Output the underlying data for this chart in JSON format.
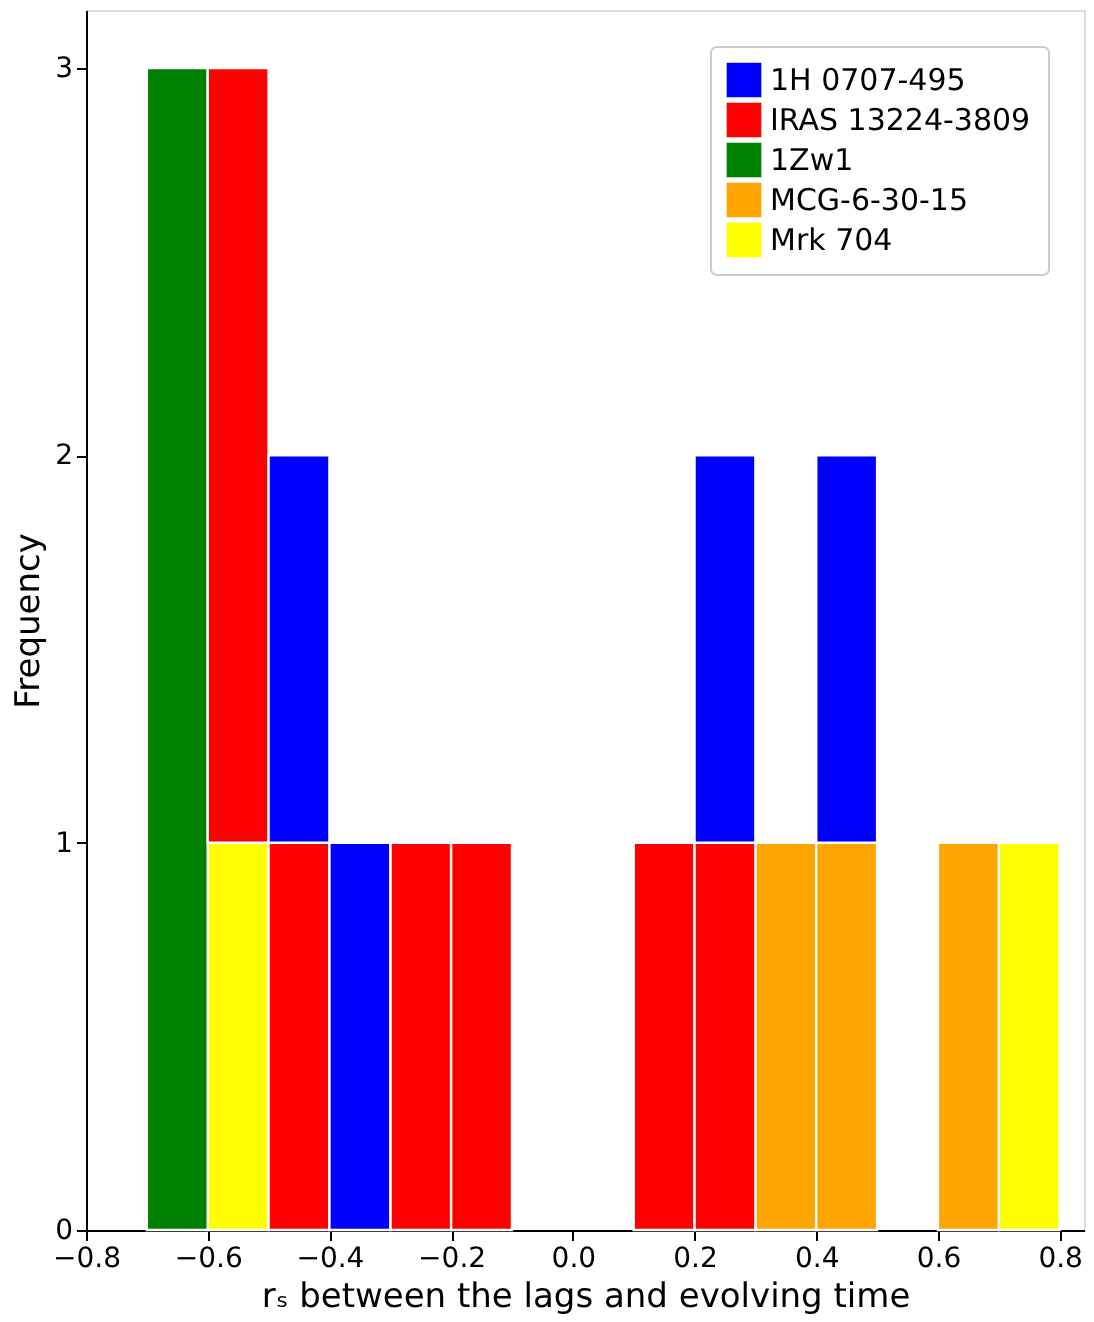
{
  "chart_data": {
    "type": "bar",
    "xlabel": "rₛ between the lags and evolving time",
    "ylabel": "Frequency",
    "x": [
      -0.65,
      -0.55,
      -0.45,
      -0.35,
      -0.25,
      -0.15,
      -0.05,
      0.05,
      0.15,
      0.25,
      0.35,
      0.45,
      0.55,
      0.65,
      0.75
    ],
    "stacked": true,
    "series": [
      {
        "name": "Mrk 704",
        "color": "#ffff00",
        "values": [
          0,
          1,
          0,
          0,
          0,
          0,
          0,
          0,
          0,
          0,
          0,
          0,
          0,
          0,
          1
        ]
      },
      {
        "name": "MCG-6-30-15",
        "color": "#ffa500",
        "values": [
          0,
          0,
          0,
          0,
          0,
          0,
          0,
          0,
          0,
          0,
          1,
          1,
          0,
          1,
          0
        ]
      },
      {
        "name": "1Zw1",
        "color": "#008000",
        "values": [
          3,
          0,
          0,
          0,
          0,
          0,
          0,
          0,
          0,
          0,
          0,
          0,
          0,
          0,
          0
        ]
      },
      {
        "name": "IRAS 13224-3809",
        "color": "#ff0000",
        "values": [
          0,
          2,
          1,
          0,
          1,
          1,
          0,
          0,
          1,
          1,
          0,
          0,
          0,
          0,
          0
        ]
      },
      {
        "name": "1H 0707-495",
        "color": "#0000ff",
        "values": [
          0,
          0,
          1,
          1,
          0,
          0,
          0,
          0,
          0,
          1,
          0,
          1,
          0,
          0,
          0
        ]
      }
    ],
    "xlim": [
      -0.8,
      0.84
    ],
    "xticks": [
      -0.8,
      -0.6,
      -0.4,
      -0.2,
      {
        "value": 0,
        "label": "0.0"
      },
      0.2,
      0.4,
      0.6,
      0.8
    ],
    "ylim": [
      0,
      3.15
    ],
    "yticks": [
      0,
      1,
      2,
      3
    ],
    "grid": false,
    "legend": "top right"
  }
}
